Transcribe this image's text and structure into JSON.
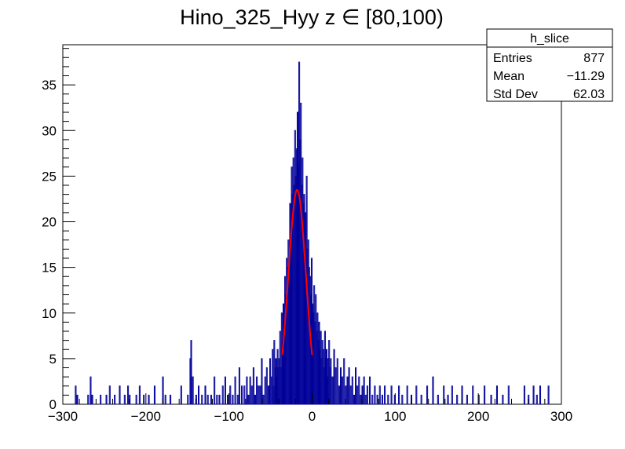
{
  "chart_data": {
    "type": "bar",
    "title": "Hino_325_Hyy z  ∈ [80,100)",
    "xlabel": "",
    "ylabel": "",
    "xlim": [
      -300,
      300
    ],
    "ylim": [
      0,
      39.4
    ],
    "x_ticks": [
      -300,
      -200,
      -100,
      0,
      100,
      200,
      300
    ],
    "y_ticks": [
      0,
      5,
      10,
      15,
      20,
      25,
      30,
      35
    ],
    "bin_width": 1,
    "histogram_color": "#000099",
    "fit_color": "#ff0000",
    "bins": [
      {
        "x": -285,
        "y": 2
      },
      {
        "x": -283,
        "y": 1
      },
      {
        "x": -270,
        "y": 1
      },
      {
        "x": -267,
        "y": 3
      },
      {
        "x": -265,
        "y": 1
      },
      {
        "x": -255,
        "y": 1
      },
      {
        "x": -248,
        "y": 1
      },
      {
        "x": -244,
        "y": 2
      },
      {
        "x": -238,
        "y": 1
      },
      {
        "x": -232,
        "y": 2
      },
      {
        "x": -226,
        "y": 1
      },
      {
        "x": -222,
        "y": 2
      },
      {
        "x": -220,
        "y": 1
      },
      {
        "x": -212,
        "y": 1
      },
      {
        "x": -208,
        "y": 2
      },
      {
        "x": -203,
        "y": 1
      },
      {
        "x": -197,
        "y": 1
      },
      {
        "x": -190,
        "y": 2
      },
      {
        "x": -180,
        "y": 3
      },
      {
        "x": -177,
        "y": 1
      },
      {
        "x": -171,
        "y": 1
      },
      {
        "x": -158,
        "y": 2
      },
      {
        "x": -150,
        "y": 1
      },
      {
        "x": -147,
        "y": 5
      },
      {
        "x": -146,
        "y": 7
      },
      {
        "x": -144,
        "y": 3
      },
      {
        "x": -140,
        "y": 1
      },
      {
        "x": -137,
        "y": 2
      },
      {
        "x": -133,
        "y": 1
      },
      {
        "x": -129,
        "y": 2
      },
      {
        "x": -126,
        "y": 1
      },
      {
        "x": -122,
        "y": 1
      },
      {
        "x": -118,
        "y": 3
      },
      {
        "x": -115,
        "y": 1
      },
      {
        "x": -112,
        "y": 1
      },
      {
        "x": -108,
        "y": 2
      },
      {
        "x": -105,
        "y": 3
      },
      {
        "x": -102,
        "y": 1
      },
      {
        "x": -99,
        "y": 2
      },
      {
        "x": -96,
        "y": 1
      },
      {
        "x": -93,
        "y": 3
      },
      {
        "x": -90,
        "y": 1
      },
      {
        "x": -88,
        "y": 4
      },
      {
        "x": -85,
        "y": 2
      },
      {
        "x": -82,
        "y": 2
      },
      {
        "x": -79,
        "y": 3
      },
      {
        "x": -77,
        "y": 1
      },
      {
        "x": -75,
        "y": 3
      },
      {
        "x": -73,
        "y": 2
      },
      {
        "x": -71,
        "y": 4
      },
      {
        "x": -69,
        "y": 1
      },
      {
        "x": -67,
        "y": 3
      },
      {
        "x": -65,
        "y": 2
      },
      {
        "x": -63,
        "y": 2
      },
      {
        "x": -61,
        "y": 5
      },
      {
        "x": -59,
        "y": 1
      },
      {
        "x": -57,
        "y": 3
      },
      {
        "x": -55,
        "y": 4
      },
      {
        "x": -53,
        "y": 2
      },
      {
        "x": -51,
        "y": 5
      },
      {
        "x": -49,
        "y": 3
      },
      {
        "x": -48,
        "y": 6
      },
      {
        "x": -47,
        "y": 2
      },
      {
        "x": -46,
        "y": 7
      },
      {
        "x": -45,
        "y": 4
      },
      {
        "x": -44,
        "y": 5
      },
      {
        "x": -43,
        "y": 3
      },
      {
        "x": -42,
        "y": 6
      },
      {
        "x": -41,
        "y": 4
      },
      {
        "x": -40,
        "y": 5
      },
      {
        "x": -39,
        "y": 8
      },
      {
        "x": -38,
        "y": 4
      },
      {
        "x": -37,
        "y": 10
      },
      {
        "x": -36,
        "y": 7
      },
      {
        "x": -35,
        "y": 11
      },
      {
        "x": -34,
        "y": 9
      },
      {
        "x": -33,
        "y": 14
      },
      {
        "x": -32,
        "y": 12
      },
      {
        "x": -31,
        "y": 16
      },
      {
        "x": -30,
        "y": 15
      },
      {
        "x": -29,
        "y": 18
      },
      {
        "x": -28,
        "y": 16
      },
      {
        "x": -27,
        "y": 22
      },
      {
        "x": -26,
        "y": 19
      },
      {
        "x": -25,
        "y": 26
      },
      {
        "x": -24,
        "y": 23
      },
      {
        "x": -23,
        "y": 27
      },
      {
        "x": -22,
        "y": 24
      },
      {
        "x": -21,
        "y": 30
      },
      {
        "x": -20,
        "y": 25
      },
      {
        "x": -19,
        "y": 28
      },
      {
        "x": -18,
        "y": 32
      },
      {
        "x": -17,
        "y": 26
      },
      {
        "x": -16,
        "y": 37.5
      },
      {
        "x": -15,
        "y": 29
      },
      {
        "x": -14,
        "y": 33
      },
      {
        "x": -13,
        "y": 24
      },
      {
        "x": -12,
        "y": 27
      },
      {
        "x": -11,
        "y": 22
      },
      {
        "x": -10,
        "y": 23
      },
      {
        "x": -9,
        "y": 19
      },
      {
        "x": -8,
        "y": 21
      },
      {
        "x": -7,
        "y": 25
      },
      {
        "x": -6,
        "y": 17
      },
      {
        "x": -5,
        "y": 18
      },
      {
        "x": -4,
        "y": 15
      },
      {
        "x": -3,
        "y": 14
      },
      {
        "x": -2,
        "y": 12
      },
      {
        "x": -1,
        "y": 16
      },
      {
        "x": 0,
        "y": 11
      },
      {
        "x": 1,
        "y": 10
      },
      {
        "x": 2,
        "y": 13
      },
      {
        "x": 3,
        "y": 9
      },
      {
        "x": 4,
        "y": 12
      },
      {
        "x": 5,
        "y": 8
      },
      {
        "x": 6,
        "y": 10
      },
      {
        "x": 7,
        "y": 7
      },
      {
        "x": 8,
        "y": 9
      },
      {
        "x": 9,
        "y": 6
      },
      {
        "x": 10,
        "y": 8
      },
      {
        "x": 11,
        "y": 5
      },
      {
        "x": 12,
        "y": 7
      },
      {
        "x": 13,
        "y": 6
      },
      {
        "x": 14,
        "y": 4
      },
      {
        "x": 15,
        "y": 8
      },
      {
        "x": 16,
        "y": 5
      },
      {
        "x": 17,
        "y": 6
      },
      {
        "x": 18,
        "y": 3
      },
      {
        "x": 19,
        "y": 5
      },
      {
        "x": 20,
        "y": 7
      },
      {
        "x": 21,
        "y": 4
      },
      {
        "x": 22,
        "y": 5
      },
      {
        "x": 24,
        "y": 3
      },
      {
        "x": 26,
        "y": 6
      },
      {
        "x": 28,
        "y": 4
      },
      {
        "x": 30,
        "y": 5
      },
      {
        "x": 32,
        "y": 2
      },
      {
        "x": 34,
        "y": 4
      },
      {
        "x": 36,
        "y": 3
      },
      {
        "x": 38,
        "y": 5
      },
      {
        "x": 40,
        "y": 2
      },
      {
        "x": 42,
        "y": 3
      },
      {
        "x": 44,
        "y": 4
      },
      {
        "x": 46,
        "y": 2
      },
      {
        "x": 48,
        "y": 3
      },
      {
        "x": 50,
        "y": 1
      },
      {
        "x": 52,
        "y": 4
      },
      {
        "x": 54,
        "y": 2
      },
      {
        "x": 56,
        "y": 3
      },
      {
        "x": 58,
        "y": 1
      },
      {
        "x": 60,
        "y": 2
      },
      {
        "x": 62,
        "y": 3
      },
      {
        "x": 64,
        "y": 1
      },
      {
        "x": 66,
        "y": 2
      },
      {
        "x": 69,
        "y": 3
      },
      {
        "x": 72,
        "y": 1
      },
      {
        "x": 75,
        "y": 2
      },
      {
        "x": 78,
        "y": 1
      },
      {
        "x": 81,
        "y": 2
      },
      {
        "x": 84,
        "y": 1
      },
      {
        "x": 87,
        "y": 2
      },
      {
        "x": 91,
        "y": 1
      },
      {
        "x": 95,
        "y": 2
      },
      {
        "x": 99,
        "y": 1
      },
      {
        "x": 104,
        "y": 2
      },
      {
        "x": 108,
        "y": 1
      },
      {
        "x": 114,
        "y": 2
      },
      {
        "x": 119,
        "y": 1
      },
      {
        "x": 125,
        "y": 2
      },
      {
        "x": 131,
        "y": 1
      },
      {
        "x": 138,
        "y": 2
      },
      {
        "x": 145,
        "y": 3
      },
      {
        "x": 151,
        "y": 1
      },
      {
        "x": 158,
        "y": 2
      },
      {
        "x": 163,
        "y": 1
      },
      {
        "x": 168,
        "y": 2
      },
      {
        "x": 174,
        "y": 1
      },
      {
        "x": 180,
        "y": 2
      },
      {
        "x": 186,
        "y": 1
      },
      {
        "x": 193,
        "y": 2
      },
      {
        "x": 200,
        "y": 1
      },
      {
        "x": 207,
        "y": 2
      },
      {
        "x": 215,
        "y": 1
      },
      {
        "x": 222,
        "y": 2
      },
      {
        "x": 229,
        "y": 1
      },
      {
        "x": 236,
        "y": 2
      },
      {
        "x": 255,
        "y": 2
      },
      {
        "x": 260,
        "y": 1
      },
      {
        "x": 266,
        "y": 2
      },
      {
        "x": 270,
        "y": 1
      },
      {
        "x": 274,
        "y": 2
      },
      {
        "x": 284,
        "y": 2
      }
    ],
    "fit": {
      "type": "gaussian",
      "amplitude": 23.5,
      "mean": -18,
      "sigma": 10.5,
      "range": [
        -36,
        0
      ]
    },
    "stats_box": {
      "name": "h_slice",
      "rows": [
        {
          "label": "Entries",
          "value": "877"
        },
        {
          "label": "Mean",
          "value": "−11.29"
        },
        {
          "label": "Std Dev",
          "value": "62.03"
        }
      ]
    }
  }
}
